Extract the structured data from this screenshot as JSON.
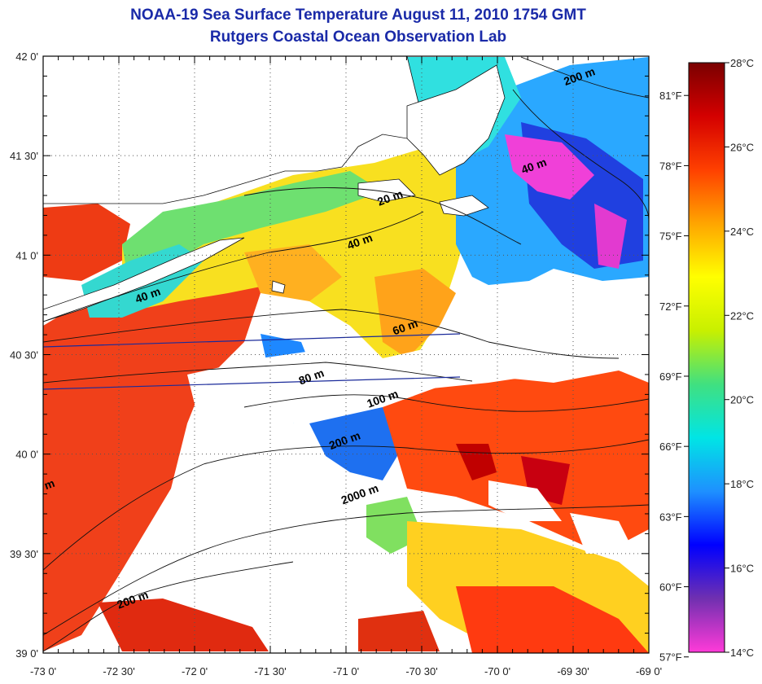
{
  "title": "NOAA-19 Sea Surface Temperature August 11, 2010 1754 GMT",
  "subtitle": "Rutgers Coastal Ocean Observation Lab",
  "lat_ticks": [
    {
      "value": 42.0,
      "label": "42 0'"
    },
    {
      "value": 41.5,
      "label": "41 30'"
    },
    {
      "value": 41.0,
      "label": "41 0'"
    },
    {
      "value": 40.5,
      "label": "40 30'"
    },
    {
      "value": 40.0,
      "label": "40 0'"
    },
    {
      "value": 39.5,
      "label": "39 30'"
    },
    {
      "value": 39.0,
      "label": "39 0'"
    }
  ],
  "lon_ticks": [
    {
      "value": -73.0,
      "label": "-73 0'"
    },
    {
      "value": -72.5,
      "label": "-72 30'"
    },
    {
      "value": -72.0,
      "label": "-72 0'"
    },
    {
      "value": -71.5,
      "label": "-71 30'"
    },
    {
      "value": -71.0,
      "label": "-71 0'"
    },
    {
      "value": -70.5,
      "label": "-70 30'"
    },
    {
      "value": -70.0,
      "label": "-70 0'"
    },
    {
      "value": -69.5,
      "label": "-69 30'"
    },
    {
      "value": -69.0,
      "label": "-69 0'"
    }
  ],
  "colorbar": {
    "min_c": 14,
    "max_c": 28,
    "celsius_labels": [
      {
        "value": 28,
        "label": "28°C"
      },
      {
        "value": 26,
        "label": "26°C"
      },
      {
        "value": 24,
        "label": "24°C"
      },
      {
        "value": 22,
        "label": "22°C"
      },
      {
        "value": 20,
        "label": "20°C"
      },
      {
        "value": 18,
        "label": "18°C"
      },
      {
        "value": 16,
        "label": "16°C"
      },
      {
        "value": 14,
        "label": "14°C"
      }
    ],
    "fahrenheit_labels": [
      {
        "value": 81,
        "label": "81°F"
      },
      {
        "value": 78,
        "label": "78°F"
      },
      {
        "value": 75,
        "label": "75°F"
      },
      {
        "value": 72,
        "label": "72°F"
      },
      {
        "value": 69,
        "label": "69°F"
      },
      {
        "value": 66,
        "label": "66°F"
      },
      {
        "value": 63,
        "label": "63°F"
      },
      {
        "value": 60,
        "label": "60°F"
      },
      {
        "value": 57,
        "label": "57°F"
      }
    ],
    "stops": [
      "#ff3ad8",
      "#7030b0",
      "#0000ff",
      "#1e90ff",
      "#00e5e5",
      "#40e080",
      "#c8f000",
      "#ffff00",
      "#ffa500",
      "#ff4000",
      "#d40000",
      "#7a0000"
    ]
  },
  "depth_labels": [
    {
      "text": "200 m",
      "lon": -69.45,
      "lat": 41.88
    },
    {
      "text": "40 m",
      "lon": -69.75,
      "lat": 41.43
    },
    {
      "text": "20 m",
      "lon": -70.7,
      "lat": 41.27
    },
    {
      "text": "40 m",
      "lon": -70.9,
      "lat": 41.05
    },
    {
      "text": "40 m",
      "lon": -72.3,
      "lat": 40.78
    },
    {
      "text": "60 m",
      "lon": -70.6,
      "lat": 40.62
    },
    {
      "text": "80 m",
      "lon": -71.22,
      "lat": 40.37
    },
    {
      "text": "100 m",
      "lon": -70.75,
      "lat": 40.26
    },
    {
      "text": "200 m",
      "lon": -71.0,
      "lat": 40.05
    },
    {
      "text": "2000 m",
      "lon": -70.9,
      "lat": 39.78
    },
    {
      "text": "200 m",
      "lon": -72.4,
      "lat": 39.25
    },
    {
      "text": "m",
      "lon": -72.95,
      "lat": 39.83
    }
  ]
}
